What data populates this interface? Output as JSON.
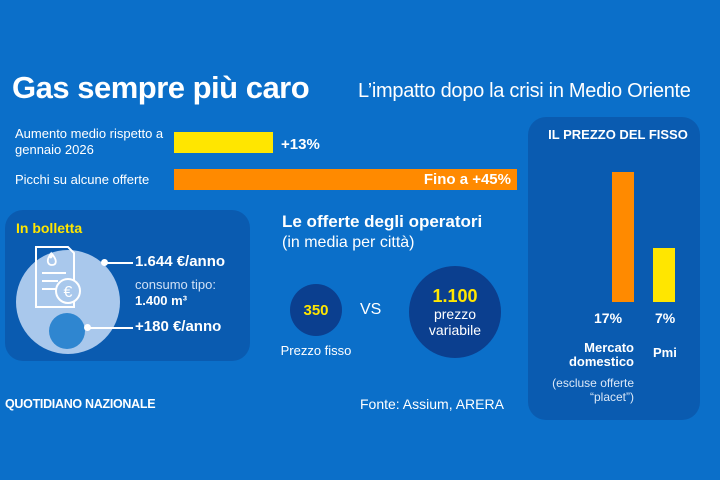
{
  "header": {
    "title": "Gas sempre più caro",
    "subtitle": "L’impatto dopo la crisi in Medio Oriente"
  },
  "colors": {
    "background": "#0b6fc9",
    "panel": "#0a5bb0",
    "yellow": "#ffe600",
    "orange": "#ff8a00",
    "navy": "#0b3f8f"
  },
  "chart_data": [
    {
      "type": "bar",
      "orientation": "horizontal",
      "categories": [
        "Aumento medio rispetto a gennaio 2026",
        "Picchi su alcune offerte"
      ],
      "values": [
        13,
        45
      ],
      "data_labels": [
        "+13%",
        "Fino a +45%"
      ],
      "colors": [
        "#ffe600",
        "#ff8a00"
      ],
      "unit": "%"
    },
    {
      "type": "bar",
      "orientation": "vertical",
      "title": "IL PREZZO DEL FISSO",
      "categories": [
        "Mercato domestico",
        "Pmi"
      ],
      "category_notes": [
        "(escluse offerte “placet”)",
        ""
      ],
      "values": [
        17,
        7
      ],
      "data_labels": [
        "17%",
        "7%"
      ],
      "colors": [
        "#ff8a00",
        "#ffe600"
      ],
      "unit": "%"
    }
  ],
  "bolletta": {
    "title": "In bolletta",
    "annual": "1.644 €/anno",
    "consumo_label": "consumo tipo:",
    "consumo_value": "1.400 m³",
    "increase": "+180 €/anno",
    "icons": [
      "bill-icon",
      "flame-icon",
      "euro-icon"
    ]
  },
  "offerte": {
    "title": "Le offerte degli operatori",
    "subtitle": "(in media per città)",
    "fixed_value": "350",
    "fixed_label": "Prezzo fisso",
    "vs": "VS",
    "variable_value": "1.100",
    "variable_label_1": "prezzo",
    "variable_label_2": "variabile"
  },
  "footer": {
    "brand": "QUOTIDIANO NAZIONALE",
    "source": "Fonte: Assium, ARERA"
  }
}
